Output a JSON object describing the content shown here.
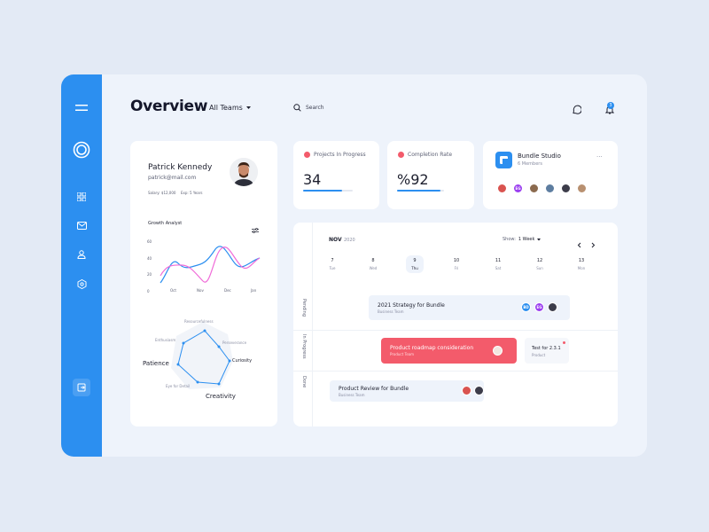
{
  "header": {
    "title": "Overview",
    "teams": "All Teams",
    "search_label": "Search",
    "notification_count": "3"
  },
  "profile": {
    "name": "Patrick Kennedy",
    "email": "patrick@mail.com",
    "salary": "Salary: $12,000",
    "experience": "Exp: 5 Years",
    "chart_title": "Growth Analyst",
    "y_ticks": [
      "60",
      "40",
      "20",
      "0"
    ],
    "x_ticks": [
      "Oct",
      "Nov",
      "Dec",
      "Jan"
    ],
    "radar": {
      "resourcefulness": "Resourcefulness",
      "enthusiasm": "Enthusiasm",
      "perseverance": "Perseverance",
      "patience": "Patience",
      "curiosity": "Curiosity",
      "eye_for_detail": "Eye for Detail",
      "creativity": "Creativity"
    }
  },
  "stats": {
    "projects_label": "Projects In Progress",
    "projects_value": "34",
    "projects_progress": 0.78,
    "completion_label": "Completion Rate",
    "completion_value": "%92",
    "completion_progress": 0.92
  },
  "studio": {
    "name": "Bundle Studio",
    "members": "6 Members",
    "more": "···",
    "avatars": [
      "",
      "EG",
      "",
      "",
      "",
      ""
    ]
  },
  "calendar": {
    "month": "NOV",
    "year": "2020",
    "show_label": "Show:",
    "show_value": "1 Week",
    "days": [
      {
        "num": "7",
        "name": "Tue"
      },
      {
        "num": "8",
        "name": "Wed"
      },
      {
        "num": "9",
        "name": "Thu"
      },
      {
        "num": "10",
        "name": "Fri"
      },
      {
        "num": "11",
        "name": "Sat"
      },
      {
        "num": "12",
        "name": "Sun"
      },
      {
        "num": "13",
        "name": "Mon"
      }
    ],
    "rows": [
      "Pending",
      "In Progress",
      "Done"
    ],
    "tasks": {
      "t1_name": "2021 Strategy for Bundle",
      "t1_sub": "Business Team",
      "t1_av1": "BD",
      "t1_av2": "EG",
      "t2_name": "Product roadmap consideration",
      "t2_sub": "Product Team",
      "t3_name": "Test for 2.3.1",
      "t3_sub": "Product",
      "t4_name": "Product Review for Bundle",
      "t4_sub": "Business Team"
    }
  },
  "colors": {
    "accent": "#2c8ff0",
    "danger": "#f35b6b",
    "purple": "#9b3ff0"
  }
}
